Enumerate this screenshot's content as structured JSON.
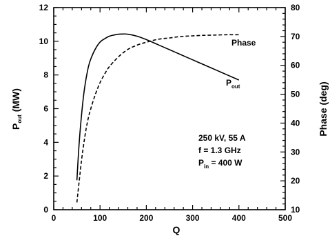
{
  "chart_data": {
    "type": "line",
    "x_axis": {
      "label": "Q",
      "range": [
        0,
        500
      ],
      "ticks": [
        "0",
        "100",
        "200",
        "300",
        "400",
        "500"
      ]
    },
    "y_left": {
      "label_main": "P",
      "label_sub": "out",
      "label_tail": " (MW)",
      "range": [
        0,
        12
      ],
      "ticks": [
        "0",
        "2",
        "4",
        "6",
        "8",
        "10",
        "12"
      ]
    },
    "y_right": {
      "label": "Phase (deg)",
      "range": [
        10,
        80
      ],
      "ticks": [
        "10",
        "20",
        "30",
        "40",
        "50",
        "60",
        "70",
        "80"
      ]
    },
    "grid": false,
    "series": [
      {
        "name_main": "P",
        "name_sub": "out",
        "axis": "left",
        "style": "solid",
        "x": [
          50,
          55,
          60,
          65,
          70,
          75,
          80,
          90,
          100,
          110,
          120,
          130,
          140,
          150,
          160,
          180,
          200,
          225,
          250,
          275,
          300,
          325,
          350,
          375,
          400
        ],
        "y": [
          1.75,
          4.0,
          5.6,
          6.9,
          7.8,
          8.5,
          8.95,
          9.55,
          9.95,
          10.15,
          10.3,
          10.37,
          10.42,
          10.43,
          10.42,
          10.3,
          10.1,
          9.8,
          9.5,
          9.2,
          8.9,
          8.6,
          8.3,
          8.0,
          7.7
        ]
      },
      {
        "name_main": "Phase",
        "name_sub": "",
        "axis": "right",
        "style": "dashed",
        "x": [
          50,
          55,
          60,
          65,
          70,
          75,
          80,
          90,
          100,
          110,
          120,
          140,
          160,
          180,
          200,
          225,
          250,
          275,
          300,
          325,
          350,
          375,
          400
        ],
        "y": [
          12.5,
          20,
          27,
          33,
          38,
          42,
          45,
          50,
          54,
          57,
          59.5,
          63,
          65.5,
          67,
          68,
          69,
          69.5,
          70,
          70.2,
          70.4,
          70.5,
          70.6,
          70.6
        ]
      }
    ],
    "annotations": {
      "line1": "250 kV,  55 A",
      "line2": "f = 1.3 GHz",
      "line3_main": "P",
      "line3_sub": "in",
      "line3_tail": " = 400 W"
    }
  }
}
